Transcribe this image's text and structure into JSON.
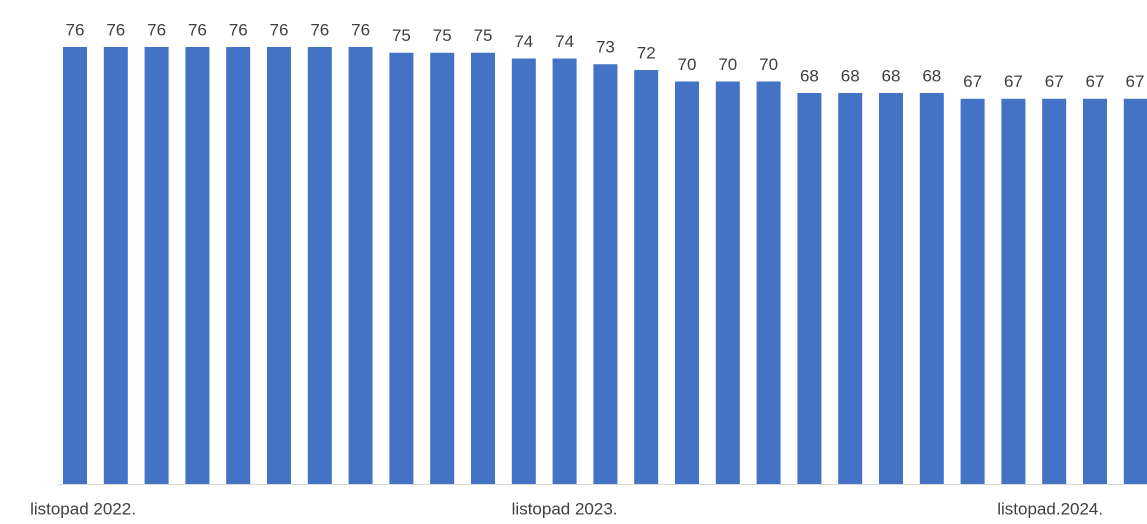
{
  "chart_data": {
    "type": "bar",
    "categories": [
      "listopad 2022.",
      null,
      null,
      null,
      null,
      null,
      null,
      null,
      null,
      null,
      null,
      null,
      "listopad 2023.",
      null,
      null,
      null,
      null,
      null,
      null,
      null,
      null,
      null,
      null,
      null,
      "listopad.2024.",
      null,
      null
    ],
    "values": [
      76,
      76,
      76,
      76,
      76,
      76,
      76,
      76,
      75,
      75,
      75,
      74,
      74,
      73,
      72,
      70,
      70,
      70,
      68,
      68,
      68,
      68,
      67,
      67,
      67,
      67,
      67
    ],
    "color": "#4472c4"
  }
}
